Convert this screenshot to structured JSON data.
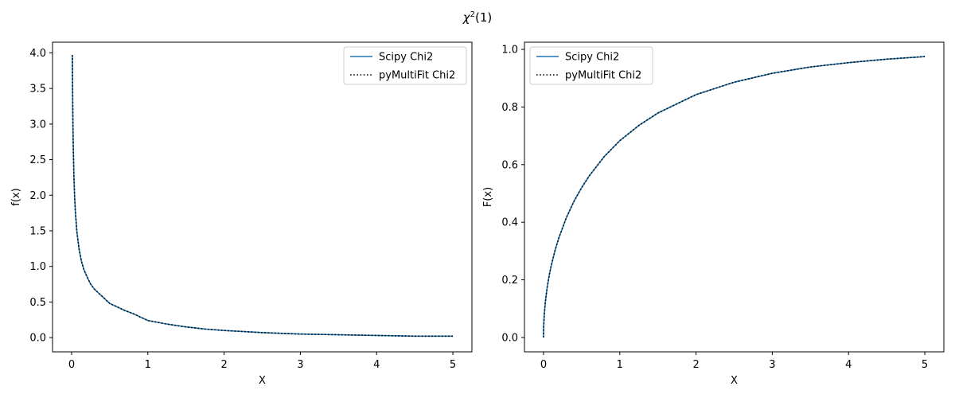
{
  "figure": {
    "title_main": "χ",
    "title_sup": "2",
    "title_tail": "(1)"
  },
  "colors": {
    "scipy": "#1f77b4",
    "pymultifit": "#000000"
  },
  "chart_data": [
    {
      "type": "line",
      "title": "",
      "xlabel": "X",
      "ylabel": "f(x)",
      "xlim": [
        -0.25,
        5.25
      ],
      "ylim": [
        -0.2,
        4.15
      ],
      "xticks": [
        0,
        1,
        2,
        3,
        4,
        5
      ],
      "yticks": [
        0.0,
        0.5,
        1.0,
        1.5,
        2.0,
        2.5,
        3.0,
        3.5,
        4.0
      ],
      "ytick_labels": [
        "0.0",
        "0.5",
        "1.0",
        "1.5",
        "2.0",
        "2.5",
        "3.0",
        "3.5",
        "4.0"
      ],
      "legend_position": "top-right",
      "grid": false,
      "series": [
        {
          "name": "Scipy Chi2",
          "style": "solid",
          "x": [
            0.01,
            0.015,
            0.02,
            0.03,
            0.04,
            0.05,
            0.07,
            0.1,
            0.13,
            0.16,
            0.2,
            0.25,
            0.3,
            0.35,
            0.4,
            0.5,
            0.6,
            0.7,
            0.8,
            1.0,
            1.25,
            1.5,
            1.75,
            2.0,
            2.5,
            3.0,
            3.5,
            4.0,
            4.5,
            5.0
          ],
          "y": [
            3.97,
            3.24,
            2.8,
            2.28,
            1.97,
            1.76,
            1.48,
            1.23,
            1.07,
            0.96,
            0.86,
            0.75,
            0.68,
            0.63,
            0.58,
            0.48,
            0.43,
            0.38,
            0.34,
            0.24,
            0.19,
            0.15,
            0.12,
            0.1,
            0.07,
            0.05,
            0.04,
            0.03,
            0.02,
            0.02
          ]
        },
        {
          "name": "pyMultiFit Chi2",
          "style": "dotted",
          "x": [
            0.01,
            0.015,
            0.02,
            0.03,
            0.04,
            0.05,
            0.07,
            0.1,
            0.13,
            0.16,
            0.2,
            0.25,
            0.3,
            0.35,
            0.4,
            0.5,
            0.6,
            0.7,
            0.8,
            1.0,
            1.25,
            1.5,
            1.75,
            2.0,
            2.5,
            3.0,
            3.5,
            4.0,
            4.5,
            5.0
          ],
          "y": [
            3.97,
            3.24,
            2.8,
            2.28,
            1.97,
            1.76,
            1.48,
            1.23,
            1.07,
            0.96,
            0.86,
            0.75,
            0.68,
            0.63,
            0.58,
            0.48,
            0.43,
            0.38,
            0.34,
            0.24,
            0.19,
            0.15,
            0.12,
            0.1,
            0.07,
            0.05,
            0.04,
            0.03,
            0.02,
            0.02
          ]
        }
      ]
    },
    {
      "type": "line",
      "title": "",
      "xlabel": "X",
      "ylabel": "F(x)",
      "xlim": [
        -0.25,
        5.25
      ],
      "ylim": [
        -0.05,
        1.025
      ],
      "xticks": [
        0,
        1,
        2,
        3,
        4,
        5
      ],
      "yticks": [
        0.0,
        0.2,
        0.4,
        0.6,
        0.8,
        1.0
      ],
      "ytick_labels": [
        "0.0",
        "0.2",
        "0.4",
        "0.6",
        "0.8",
        "1.0"
      ],
      "legend_position": "top-left",
      "grid": false,
      "series": [
        {
          "name": "Scipy Chi2",
          "style": "solid",
          "x": [
            0.0,
            0.002,
            0.005,
            0.01,
            0.02,
            0.03,
            0.05,
            0.075,
            0.1,
            0.15,
            0.2,
            0.3,
            0.4,
            0.5,
            0.6,
            0.8,
            1.0,
            1.25,
            1.5,
            2.0,
            2.5,
            3.0,
            3.5,
            4.0,
            4.5,
            5.0
          ],
          "y": [
            0.0,
            0.036,
            0.056,
            0.08,
            0.112,
            0.137,
            0.177,
            0.216,
            0.248,
            0.301,
            0.345,
            0.416,
            0.473,
            0.52,
            0.561,
            0.629,
            0.683,
            0.736,
            0.779,
            0.843,
            0.886,
            0.917,
            0.939,
            0.954,
            0.966,
            0.975
          ]
        },
        {
          "name": "pyMultiFit Chi2",
          "style": "dotted",
          "x": [
            0.0,
            0.002,
            0.005,
            0.01,
            0.02,
            0.03,
            0.05,
            0.075,
            0.1,
            0.15,
            0.2,
            0.3,
            0.4,
            0.5,
            0.6,
            0.8,
            1.0,
            1.25,
            1.5,
            2.0,
            2.5,
            3.0,
            3.5,
            4.0,
            4.5,
            5.0
          ],
          "y": [
            0.0,
            0.036,
            0.056,
            0.08,
            0.112,
            0.137,
            0.177,
            0.216,
            0.248,
            0.301,
            0.345,
            0.416,
            0.473,
            0.52,
            0.561,
            0.629,
            0.683,
            0.736,
            0.779,
            0.843,
            0.886,
            0.917,
            0.939,
            0.954,
            0.966,
            0.975
          ]
        }
      ]
    }
  ]
}
